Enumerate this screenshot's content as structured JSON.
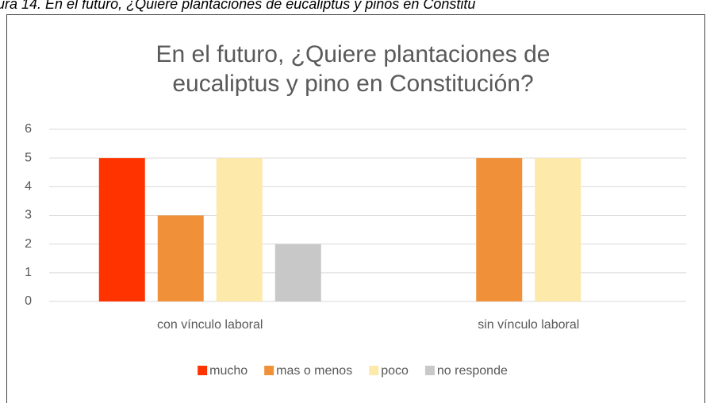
{
  "caption": "ura 14. En el futuro, ¿Quiere plantaciones de eucaliptus y pinos en Constitu",
  "chart_data": {
    "type": "bar",
    "title": [
      "En el futuro, ¿Quiere plantaciones de",
      "eucaliptus y pino en Constitución?"
    ],
    "categories": [
      "con vínculo laboral",
      "sin vínculo laboral"
    ],
    "series": [
      {
        "name": "mucho",
        "color": "#ff3300",
        "values": [
          5,
          null
        ]
      },
      {
        "name": "mas o menos",
        "color": "#f0913a",
        "values": [
          3,
          5
        ]
      },
      {
        "name": "poco",
        "color": "#fde9a9",
        "values": [
          5,
          5
        ]
      },
      {
        "name": "no responde",
        "color": "#c8c8c8",
        "values": [
          2,
          null
        ]
      }
    ],
    "ylim": [
      0,
      6
    ],
    "yticks": [
      0,
      1,
      2,
      3,
      4,
      5,
      6
    ],
    "grid": true,
    "legend": "bottom"
  }
}
